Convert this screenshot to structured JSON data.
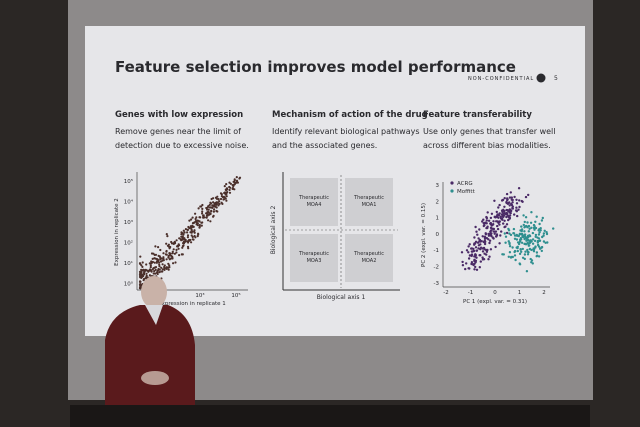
{
  "slide": {
    "title": "Feature selection improves model performance",
    "confidentiality": "NON-CONFIDENTIAL",
    "page": "5",
    "columns": [
      {
        "heading": "Genes with low expression",
        "body": [
          "Remove genes near the limit of",
          "detection due to excessive noise."
        ]
      },
      {
        "heading": "Mechanism of action of the drug",
        "body": [
          "Identify relevant biological pathways",
          "and the associated genes."
        ]
      },
      {
        "heading": "Feature transferability",
        "body": [
          "Use only genes that transfer well",
          "across different bias modalities."
        ]
      }
    ],
    "plot1": {
      "ylabel": "Expression in replicate 2",
      "xlabel": "Expression in replicate 1",
      "yticks": [
        "10⁵",
        "10⁴",
        "10³",
        "10²",
        "10¹",
        "10⁰"
      ],
      "xticks": [
        "10³",
        "10⁵"
      ]
    },
    "diagram": {
      "ylabel": "Biological axis 2",
      "xlabel": "Biological axis 1",
      "quadrants": [
        [
          "Therapeutic",
          "MOA4"
        ],
        [
          "Therapeutic",
          "MOA1"
        ],
        [
          "Therapeutic",
          "MOA3"
        ],
        [
          "Therapeutic",
          "MOA2"
        ]
      ]
    },
    "plot3": {
      "ylabel": "PC 2 (expl. var. = 0.15)",
      "xlabel": "PC 1 (expl. var. = 0.31)",
      "yticks": [
        "3",
        "2",
        "1",
        "0",
        "-1",
        "-2",
        "-3"
      ],
      "xticks": [
        "-2",
        "-1",
        "0",
        "1",
        "2"
      ],
      "legend": [
        "ACRG",
        "Moffitt"
      ]
    }
  }
}
